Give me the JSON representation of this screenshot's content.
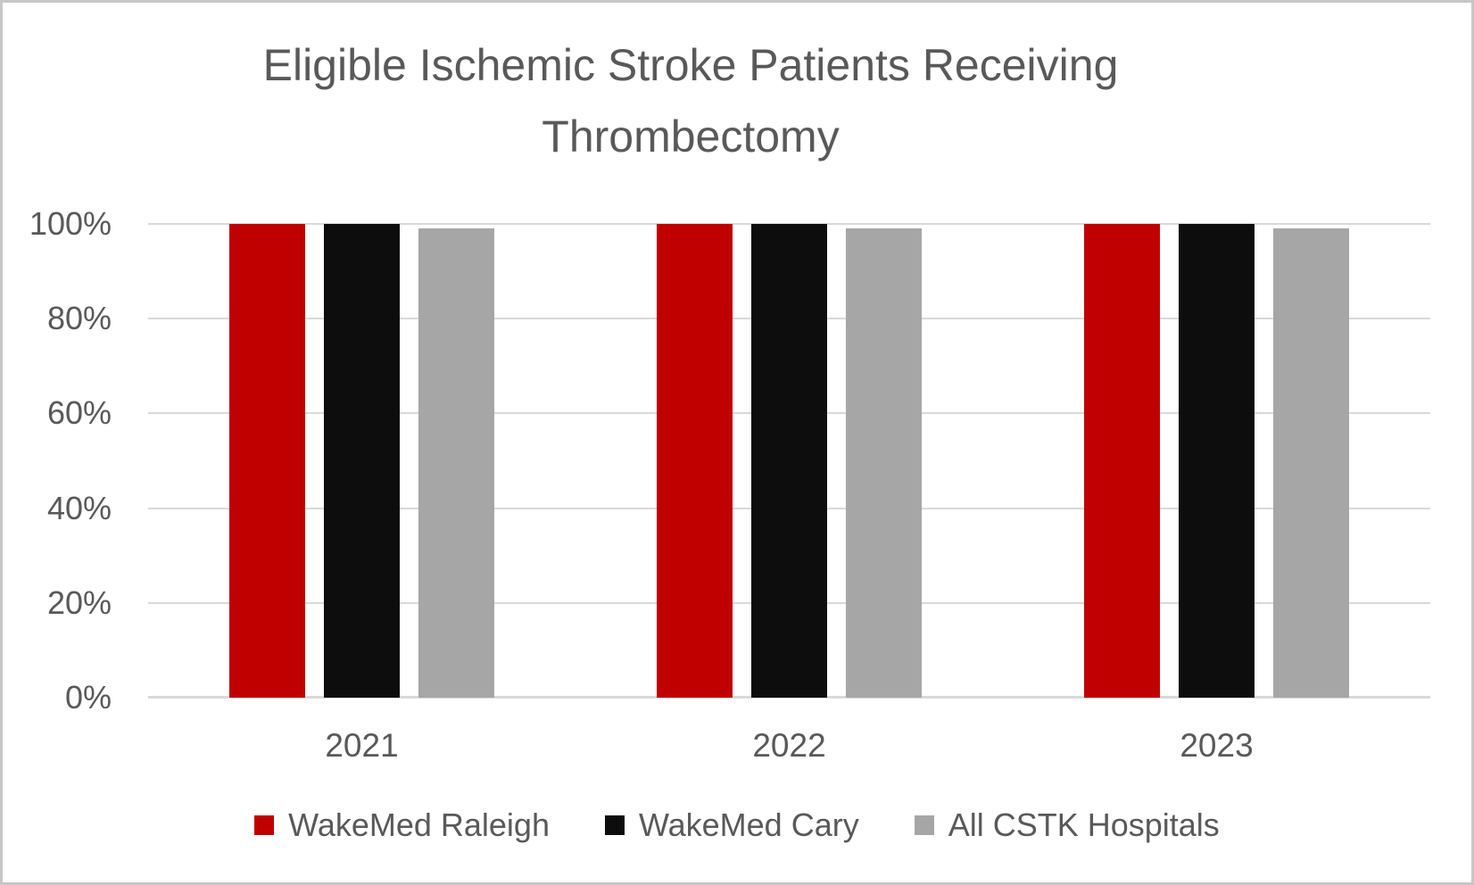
{
  "chart_data": {
    "type": "bar",
    "title": "Eligible Ischemic Stroke Patients Receiving Thrombectomy",
    "categories": [
      "2021",
      "2022",
      "2023"
    ],
    "series": [
      {
        "name": "WakeMed Raleigh",
        "color": "#C00000",
        "values": [
          100,
          100,
          100
        ]
      },
      {
        "name": "WakeMed Cary",
        "color": "#0D0D0D",
        "values": [
          100,
          100,
          100
        ]
      },
      {
        "name": "All CSTK Hospitals",
        "color": "#A6A6A6",
        "values": [
          99,
          99,
          99
        ]
      }
    ],
    "xlabel": "",
    "ylabel": "",
    "ylim": [
      0,
      100
    ],
    "yticks": [
      {
        "value": 0,
        "label": "0%"
      },
      {
        "value": 20,
        "label": "20%"
      },
      {
        "value": 40,
        "label": "40%"
      },
      {
        "value": 60,
        "label": "60%"
      },
      {
        "value": 80,
        "label": "80%"
      },
      {
        "value": 100,
        "label": "100%"
      }
    ],
    "grid": "horizontal",
    "legend_position": "bottom",
    "text_color": "#595959",
    "gridline_color": "#D9D9D9",
    "background_color": "#FFFFFF",
    "border_color": "#C7C5C5"
  }
}
